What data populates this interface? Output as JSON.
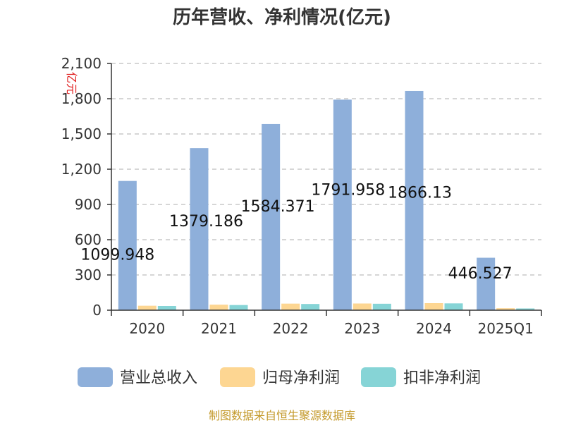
{
  "chart_data": {
    "type": "bar",
    "title": "历年营收、净利情况(亿元)",
    "ylabel": "亿元",
    "xlabel": "",
    "categories": [
      "2020",
      "2021",
      "2022",
      "2023",
      "2024",
      "2025Q1"
    ],
    "ylim": [
      0,
      2100
    ],
    "yticks": [
      0,
      300,
      600,
      900,
      1200,
      1500,
      1800,
      2100
    ],
    "ytick_labels": [
      "0",
      "300",
      "600",
      "900",
      "1,200",
      "1,500",
      "1,800",
      "2,100"
    ],
    "grid": true,
    "legend_position": "bottom",
    "series": [
      {
        "name": "营业总收入",
        "color": "#8eafda",
        "values": [
          1099.948,
          1379.186,
          1584.371,
          1791.958,
          1866.13,
          446.527
        ],
        "labels": [
          "1099.948",
          "1379.186",
          "1584.371",
          "1791.958",
          "1866.13",
          "446.527"
        ]
      },
      {
        "name": "归母净利润",
        "color": "#fdd692",
        "values": [
          38,
          47,
          56,
          57,
          60,
          17
        ]
      },
      {
        "name": "扣非净利润",
        "color": "#86d4d6",
        "values": [
          36,
          44,
          53,
          55,
          58,
          15
        ]
      }
    ],
    "source": "制图数据来自恒生聚源数据库"
  }
}
